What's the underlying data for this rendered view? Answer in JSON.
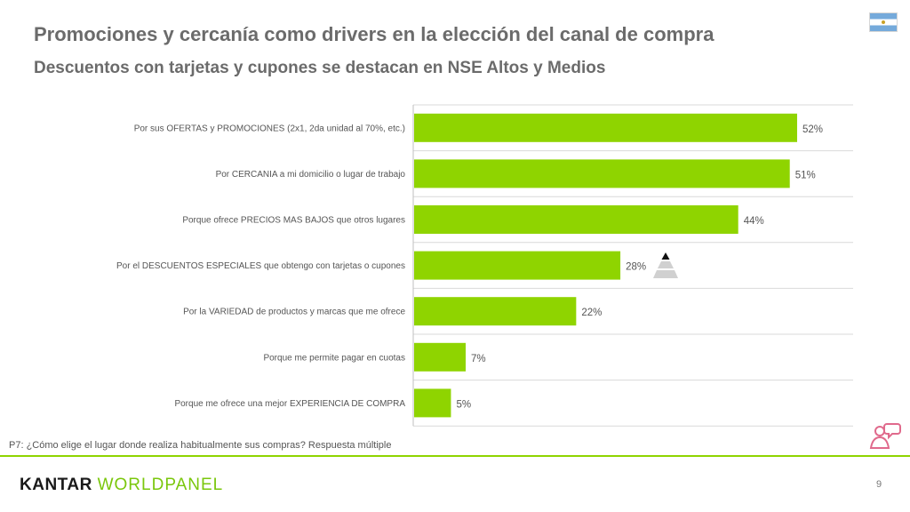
{
  "header": {
    "title": "Promociones y cercanía como drivers en la elección del canal de compra",
    "subtitle": "Descuentos con tarjetas y cupones se destacan en NSE Altos y Medios"
  },
  "chart_data": {
    "type": "bar",
    "orientation": "horizontal",
    "title": "Promociones y cercanía como drivers en la elección del canal de compra",
    "subtitle": "Descuentos con tarjetas y cupones se destacan en NSE Altos y Medios",
    "categories": [
      "Por sus OFERTAS y PROMOCIONES (2x1, 2da unidad al 70%, etc.)",
      "Por CERCANIA a mi domicilio o lugar de trabajo",
      "Porque ofrece PRECIOS MAS BAJOS que otros lugares",
      "Por el DESCUENTOS ESPECIALES que obtengo con tarjetas o cupones",
      "Por la VARIEDAD de productos y marcas que me ofrece",
      "Porque me permite pagar en cuotas",
      "Porque me ofrece una mejor EXPERIENCIA DE COMPRA"
    ],
    "values": [
      52,
      51,
      44,
      28,
      22,
      7,
      5
    ],
    "value_labels": [
      "52%",
      "51%",
      "44%",
      "28%",
      "22%",
      "7%",
      "5%"
    ],
    "unit": "%",
    "xlim": [
      0,
      60
    ],
    "bar_color": "#8fd400",
    "grid": true
  },
  "footnote": "P7: ¿Cómo elige el lugar donde realiza habitualmente sus compras? Respuesta múltiple",
  "logo": {
    "part1": "KANTAR ",
    "part2": "WORLDPANEL"
  },
  "page_number": "9",
  "icons": {
    "flag": "argentina-flag-icon",
    "people": "people-chat-icon",
    "pyramid": "nse-pyramid-icon"
  }
}
